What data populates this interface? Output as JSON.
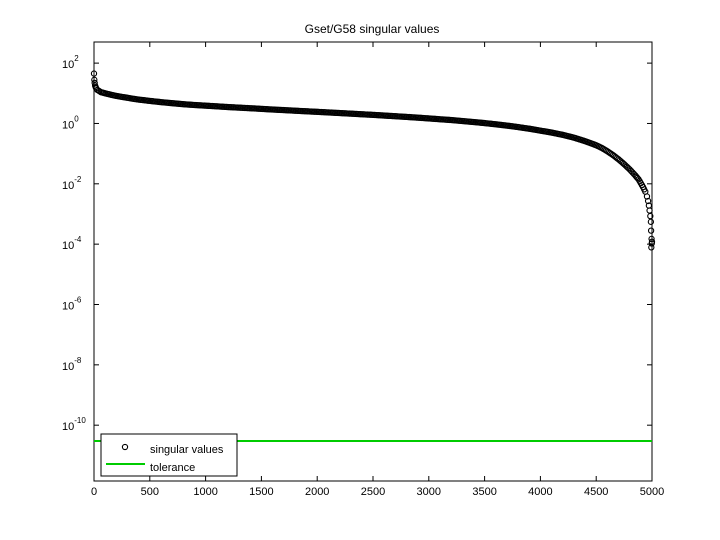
{
  "chart_data": {
    "type": "scatter",
    "title": "Gset/G58 singular values",
    "xlabel": "",
    "ylabel": "",
    "xlim": [
      0,
      5000
    ],
    "ylim_exponent": [
      -12,
      3
    ],
    "y_scale": "log",
    "grid": false,
    "x_ticks": [
      "0",
      "500",
      "1000",
      "1500",
      "2000",
      "2500",
      "3000",
      "3500",
      "4000",
      "4500",
      "5000"
    ],
    "y_ticks": [
      {
        "base": "10",
        "exp": "2"
      },
      {
        "base": "10",
        "exp": "0"
      },
      {
        "base": "10",
        "exp": "-2"
      },
      {
        "base": "10",
        "exp": "-4"
      },
      {
        "base": "10",
        "exp": "-6"
      },
      {
        "base": "10",
        "exp": "-8"
      },
      {
        "base": "10",
        "exp": "-10"
      }
    ],
    "legend_position": "bottom-left",
    "series": [
      {
        "name": "singular values",
        "marker": "circle",
        "color": "#000000",
        "points": [
          [
            0,
            45
          ],
          [
            3,
            28
          ],
          [
            6,
            22
          ],
          [
            10,
            18
          ],
          [
            15,
            16
          ],
          [
            20,
            14.5
          ],
          [
            30,
            13
          ],
          [
            45,
            12
          ],
          [
            60,
            11
          ],
          [
            80,
            10.5
          ],
          [
            100,
            10
          ],
          [
            150,
            9
          ],
          [
            200,
            8.2
          ],
          [
            250,
            7.6
          ],
          [
            300,
            7.1
          ],
          [
            350,
            6.6
          ],
          [
            400,
            6.2
          ],
          [
            450,
            5.9
          ],
          [
            500,
            5.6
          ],
          [
            600,
            5.1
          ],
          [
            700,
            4.7
          ],
          [
            800,
            4.35
          ],
          [
            900,
            4.1
          ],
          [
            1000,
            3.9
          ],
          [
            1100,
            3.7
          ],
          [
            1200,
            3.5
          ],
          [
            1300,
            3.35
          ],
          [
            1400,
            3.2
          ],
          [
            1500,
            3.05
          ],
          [
            1600,
            2.9
          ],
          [
            1700,
            2.78
          ],
          [
            1800,
            2.65
          ],
          [
            1900,
            2.54
          ],
          [
            2000,
            2.43
          ],
          [
            2100,
            2.32
          ],
          [
            2200,
            2.22
          ],
          [
            2300,
            2.12
          ],
          [
            2400,
            2.02
          ],
          [
            2500,
            1.93
          ],
          [
            2600,
            1.83
          ],
          [
            2700,
            1.74
          ],
          [
            2800,
            1.65
          ],
          [
            2900,
            1.56
          ],
          [
            3000,
            1.47
          ],
          [
            3100,
            1.38
          ],
          [
            3200,
            1.3
          ],
          [
            3300,
            1.21
          ],
          [
            3400,
            1.12
          ],
          [
            3500,
            1.03
          ],
          [
            3600,
            0.94
          ],
          [
            3700,
            0.85
          ],
          [
            3800,
            0.76
          ],
          [
            3900,
            0.67
          ],
          [
            4000,
            0.58
          ],
          [
            4100,
            0.5
          ],
          [
            4200,
            0.42
          ],
          [
            4300,
            0.34
          ],
          [
            4400,
            0.26
          ],
          [
            4500,
            0.19
          ],
          [
            4550,
            0.155
          ],
          [
            4600,
            0.12
          ],
          [
            4650,
            0.09
          ],
          [
            4700,
            0.065
          ],
          [
            4750,
            0.045
          ],
          [
            4800,
            0.03
          ],
          [
            4850,
            0.019
          ],
          [
            4880,
            0.014
          ],
          [
            4900,
            0.0105
          ],
          [
            4920,
            0.0078
          ],
          [
            4940,
            0.0055
          ],
          [
            4955,
            0.0038
          ],
          [
            4965,
            0.0027
          ],
          [
            4972,
            0.0019
          ],
          [
            4978,
            0.0013
          ],
          [
            4985,
            0.00085
          ],
          [
            4990,
            0.00055
          ],
          [
            4992,
            0.00028
          ],
          [
            4994,
            7.8e-05
          ],
          [
            4996,
            0.00015
          ],
          [
            4998,
            0.000105
          ],
          [
            5000,
            0.00012
          ]
        ]
      },
      {
        "name": "tolerance",
        "marker": "line",
        "color": "#00cc00",
        "x": [
          0,
          5000
        ],
        "y": 3e-11
      }
    ]
  }
}
